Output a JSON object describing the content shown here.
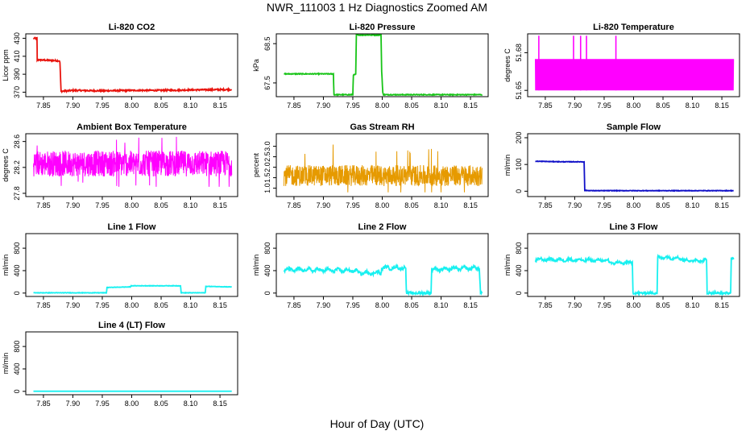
{
  "title": "NWR_111003  1 Hz Diagnostics Zoomed AM",
  "x_axis_title": "Hour of Day (UTC)",
  "colors": {
    "red": "#e8140e",
    "green": "#17c417",
    "magenta": "#ff00ff",
    "orange": "#e69a00",
    "blue": "#1010c8",
    "cyan": "#18f0f0"
  },
  "chart_data": [
    {
      "id": "li820-co2",
      "type": "line",
      "title": "Li-820 CO2",
      "ylabel": "Licor ppm",
      "color": "red",
      "xlim": [
        7.82,
        8.18
      ],
      "ylim": [
        365,
        435
      ],
      "xticks": [
        "7.85",
        "7.90",
        "7.95",
        "8.00",
        "8.05",
        "8.10",
        "8.15"
      ],
      "yticks": [
        "370",
        "390",
        "410",
        "430"
      ],
      "series": [
        {
          "name": "CO2",
          "x": [
            7.833,
            7.839,
            7.8395,
            7.877,
            7.878,
            7.88,
            7.9,
            7.95,
            8.0,
            8.05,
            8.1,
            8.17
          ],
          "y": [
            430,
            430,
            406,
            405,
            403,
            371,
            372,
            371.5,
            372,
            372,
            372.5,
            373
          ],
          "noise": 0.8
        }
      ]
    },
    {
      "id": "li820-pressure",
      "type": "line",
      "title": "Li-820 Pressure",
      "ylabel": "kPa",
      "color": "green",
      "xlim": [
        7.82,
        8.18
      ],
      "ylim": [
        67.15,
        68.75
      ],
      "xticks": [
        "7.85",
        "7.90",
        "7.95",
        "8.00",
        "8.05",
        "8.10",
        "8.15"
      ],
      "yticks": [
        "67.5",
        "68.5"
      ],
      "series": [
        {
          "name": "Pressure",
          "x": [
            7.833,
            7.917,
            7.918,
            7.95,
            7.951,
            7.955,
            7.956,
            7.998,
            7.999,
            8.001,
            8.002,
            8.17
          ],
          "y": [
            67.73,
            67.73,
            67.2,
            67.2,
            67.7,
            67.72,
            68.72,
            68.72,
            67.8,
            67.25,
            67.2,
            67.2
          ],
          "noise": 0.01
        }
      ]
    },
    {
      "id": "li820-temperature",
      "type": "band",
      "title": "Li-820 Temperature",
      "ylabel": "degrees C",
      "color": "magenta",
      "xlim": [
        7.82,
        8.18
      ],
      "ylim": [
        51.645,
        51.695
      ],
      "xticks": [
        "7.85",
        "7.90",
        "7.95",
        "8.00",
        "8.05",
        "8.10",
        "8.15"
      ],
      "yticks": [
        "51.65",
        "51.68"
      ],
      "series": [
        {
          "name": "Temperature",
          "x_start": 7.833,
          "x_end": 8.17,
          "low": 51.65,
          "high": 51.675,
          "spikes": [
            7.839,
            7.898,
            7.91,
            7.92,
            7.97
          ]
        }
      ]
    },
    {
      "id": "ambient-box-temperature",
      "type": "noise",
      "title": "Ambient Box Temperature",
      "ylabel": "degrees C",
      "color": "magenta",
      "xlim": [
        7.82,
        8.18
      ],
      "ylim": [
        27.75,
        28.72
      ],
      "xticks": [
        "7.85",
        "7.90",
        "7.95",
        "8.00",
        "8.05",
        "8.10",
        "8.15"
      ],
      "yticks": [
        "27.8",
        "28.2",
        "28.6"
      ],
      "series": [
        {
          "name": "Ambient",
          "x_start": 7.833,
          "x_end": 8.17,
          "mean": 28.26,
          "amp": 0.2,
          "min": 27.9,
          "max": 28.7
        }
      ]
    },
    {
      "id": "gas-stream-rh",
      "type": "noise",
      "title": "Gas Stream RH",
      "ylabel": "percent",
      "color": "orange",
      "xlim": [
        7.82,
        8.18
      ],
      "ylim": [
        0.6,
        3.6
      ],
      "xticks": [
        "7.85",
        "7.90",
        "7.95",
        "8.00",
        "8.05",
        "8.10",
        "8.15"
      ],
      "yticks": [
        "1.0",
        "1.5",
        "2.0",
        "2.5",
        "3.0"
      ],
      "series": [
        {
          "name": "RH",
          "x_start": 7.833,
          "x_end": 8.17,
          "mean": 1.6,
          "amp": 0.5,
          "min": 0.8,
          "max": 3.3
        }
      ]
    },
    {
      "id": "sample-flow",
      "type": "line",
      "title": "Sample Flow",
      "ylabel": "ml/min",
      "color": "blue",
      "xlim": [
        7.82,
        8.18
      ],
      "ylim": [
        -20,
        215
      ],
      "xticks": [
        "7.85",
        "7.90",
        "7.95",
        "8.00",
        "8.05",
        "8.10",
        "8.15"
      ],
      "yticks": [
        "0",
        "100",
        "200"
      ],
      "series": [
        {
          "name": "Sample",
          "x": [
            7.833,
            7.88,
            7.916,
            7.917,
            7.93,
            8.17
          ],
          "y": [
            112,
            110,
            110,
            3,
            2,
            2
          ],
          "noise": 1
        }
      ]
    },
    {
      "id": "line-1-flow",
      "type": "line",
      "title": "Line 1 Flow",
      "ylabel": "ml/min",
      "color": "cyan",
      "xlim": [
        7.82,
        8.18
      ],
      "ylim": [
        -60,
        1060
      ],
      "xticks": [
        "7.85",
        "7.90",
        "7.95",
        "8.00",
        "8.05",
        "8.10",
        "8.15"
      ],
      "yticks": [
        "0",
        "400",
        "800"
      ],
      "series": [
        {
          "name": "Line1",
          "x": [
            7.833,
            7.957,
            7.958,
            7.998,
            7.999,
            8.083,
            8.084,
            8.125,
            8.126,
            8.17
          ],
          "y": [
            5,
            5,
            100,
            110,
            130,
            130,
            5,
            5,
            120,
            110
          ],
          "noise": 4
        }
      ]
    },
    {
      "id": "line-2-flow",
      "type": "line",
      "title": "Line 2 Flow",
      "ylabel": "ml/min",
      "color": "cyan",
      "xlim": [
        7.82,
        8.18
      ],
      "ylim": [
        -60,
        1060
      ],
      "xticks": [
        "7.85",
        "7.90",
        "7.95",
        "8.00",
        "8.05",
        "8.10",
        "8.15"
      ],
      "yticks": [
        "0",
        "400",
        "800"
      ],
      "series": [
        {
          "name": "Line2",
          "x": [
            7.833,
            7.957,
            7.958,
            7.998,
            7.999,
            8.04,
            8.041,
            8.083,
            8.084,
            8.165,
            8.167,
            8.17
          ],
          "y": [
            420,
            400,
            360,
            360,
            450,
            450,
            0,
            0,
            420,
            450,
            0,
            0
          ],
          "noise": 25,
          "wave": true
        }
      ]
    },
    {
      "id": "line-3-flow",
      "type": "line",
      "title": "Line 3 Flow",
      "ylabel": "ml/min",
      "color": "cyan",
      "xlim": [
        7.82,
        8.18
      ],
      "ylim": [
        -60,
        1060
      ],
      "xticks": [
        "7.85",
        "7.90",
        "7.95",
        "8.00",
        "8.05",
        "8.10",
        "8.15"
      ],
      "yticks": [
        "0",
        "400",
        "800"
      ],
      "series": [
        {
          "name": "Line3",
          "x": [
            7.833,
            7.957,
            7.958,
            7.998,
            7.999,
            8.04,
            8.041,
            8.083,
            8.084,
            8.124,
            8.125,
            8.165,
            8.166,
            8.17
          ],
          "y": [
            600,
            580,
            540,
            540,
            0,
            0,
            640,
            620,
            580,
            580,
            0,
            0,
            620,
            600
          ],
          "noise": 20,
          "wave": true
        }
      ]
    },
    {
      "id": "line-4-lt-flow",
      "type": "line",
      "title": "Line 4 (LT) Flow",
      "ylabel": "ml/min",
      "color": "cyan",
      "xlim": [
        7.82,
        8.18
      ],
      "ylim": [
        -60,
        1060
      ],
      "xticks": [
        "7.85",
        "7.90",
        "7.95",
        "8.00",
        "8.05",
        "8.10",
        "8.15"
      ],
      "yticks": [
        "0",
        "400",
        "800"
      ],
      "series": [
        {
          "name": "Line4",
          "x": [
            7.833,
            8.17
          ],
          "y": [
            2,
            2
          ],
          "noise": 0
        }
      ]
    }
  ]
}
